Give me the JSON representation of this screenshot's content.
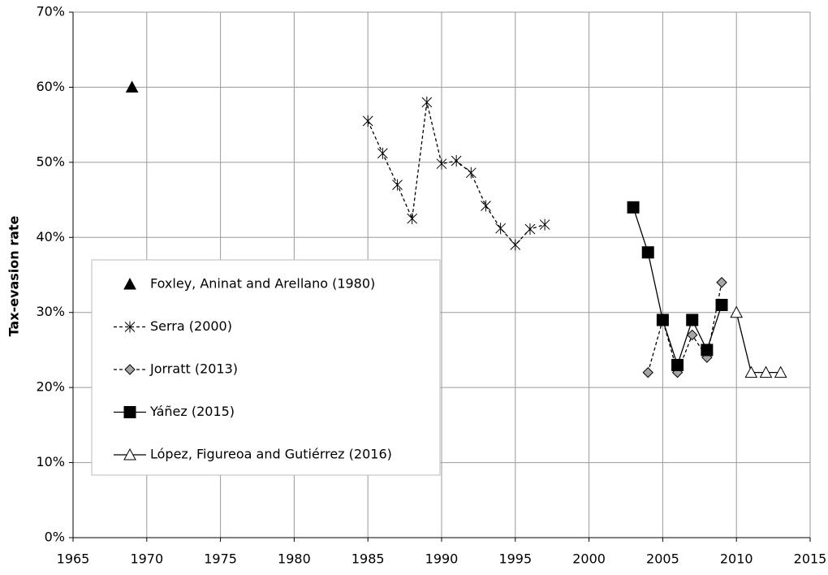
{
  "chart_data": {
    "type": "line",
    "y_label": "Tax-evasion rate",
    "xlim": [
      1965,
      2015
    ],
    "xticks": [
      1965,
      1970,
      1975,
      1980,
      1985,
      1990,
      1995,
      2000,
      2005,
      2010,
      2015
    ],
    "ylim": [
      0,
      70
    ],
    "yticks": [
      {
        "value": 0,
        "label": "0%"
      },
      {
        "value": 10,
        "label": "10%"
      },
      {
        "value": 20,
        "label": "20%"
      },
      {
        "value": 30,
        "label": "30%"
      },
      {
        "value": 40,
        "label": "40%"
      },
      {
        "value": 50,
        "label": "50%"
      },
      {
        "value": 60,
        "label": "60%"
      },
      {
        "value": 70,
        "label": "70%"
      }
    ],
    "grid": true,
    "legend": "lower left",
    "series": [
      {
        "name": "Foxley, Aninat and Arellano (1980)",
        "marker": "triangle",
        "line": "none",
        "color": "#000000",
        "x": [
          1969
        ],
        "values": [
          60
        ]
      },
      {
        "name": "Serra (2000)",
        "marker": "asterisk",
        "line": "dashed",
        "color": "#000000",
        "x": [
          1985,
          1986,
          1987,
          1988,
          1989,
          1990,
          1991,
          1992,
          1993,
          1994,
          1995,
          1996,
          1997
        ],
        "values": [
          55.5,
          51.2,
          47,
          42.5,
          58,
          49.8,
          50.2,
          48.6,
          44.2,
          41.2,
          39,
          41.1,
          41.7
        ]
      },
      {
        "name": "Jorratt (2013)",
        "marker": "diamond",
        "line": "dashed",
        "color": "#a6a6a6",
        "x": [
          2004,
          2005,
          2006,
          2007,
          2008,
          2009
        ],
        "values": [
          22,
          29,
          22,
          27,
          24,
          34
        ]
      },
      {
        "name": "Yáñez (2015)",
        "marker": "square",
        "line": "solid",
        "color": "#000000",
        "x": [
          2003,
          2004,
          2005,
          2006,
          2007,
          2008,
          2009
        ],
        "values": [
          44,
          38,
          29,
          23,
          29,
          25,
          31
        ]
      },
      {
        "name": "López, Figureoa and Gutiérrez (2016)",
        "marker": "triangle",
        "line": "solid",
        "color": "#ffffff",
        "x": [
          2010,
          2011,
          2012,
          2013
        ],
        "values": [
          30,
          22,
          22,
          22
        ]
      }
    ]
  }
}
